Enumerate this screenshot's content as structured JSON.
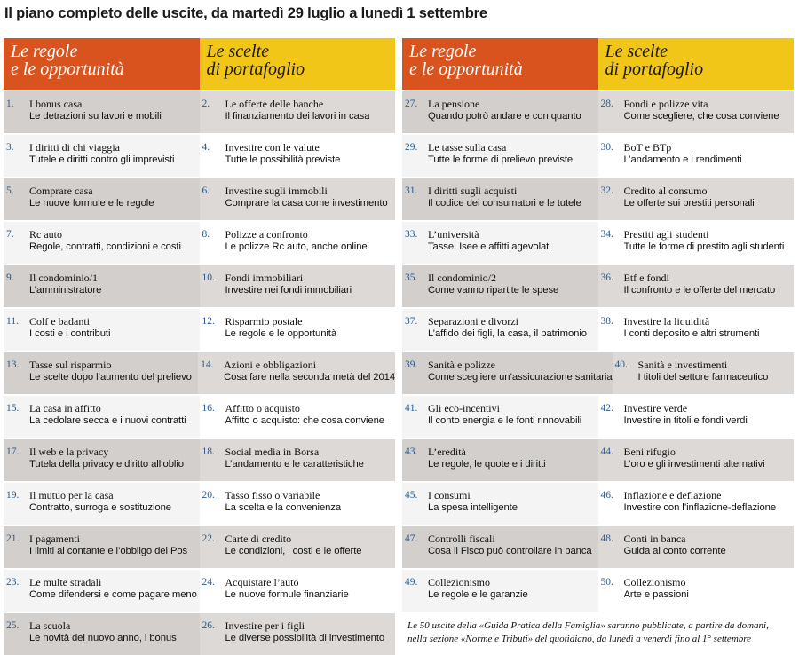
{
  "title": "Il piano completo delle uscite, da martedì 29 luglio a lunedì 1 settembre",
  "headers": {
    "left_orange": [
      "Le regole",
      "e le opportunità"
    ],
    "left_yellow": [
      "Le scelte",
      "di portafoglio"
    ],
    "right_orange": [
      "Le regole",
      "e le opportunità"
    ],
    "right_yellow": [
      "Le scelte",
      "di portafoglio"
    ]
  },
  "left_rows": [
    [
      {
        "n": "1.",
        "t": "I bonus casa",
        "s": "Le detrazioni su lavori e mobili"
      },
      {
        "n": "2.",
        "t": "Le offerte delle banche",
        "s": "Il finanziamento dei lavori in casa"
      }
    ],
    [
      {
        "n": "3.",
        "t": "I diritti di chi viaggia",
        "s": "Tutele e diritti contro gli imprevisti"
      },
      {
        "n": "4.",
        "t": "Investire con le valute",
        "s": "Tutte le possibilità previste"
      }
    ],
    [
      {
        "n": "5.",
        "t": "Comprare casa",
        "s": "Le nuove formule e le regole"
      },
      {
        "n": "6.",
        "t": "Investire sugli immobili",
        "s": "Comprare la casa come investimento"
      }
    ],
    [
      {
        "n": "7.",
        "t": "Rc auto",
        "s": "Regole, contratti, condizioni e costi"
      },
      {
        "n": "8.",
        "t": "Polizze a confronto",
        "s": "Le polizze Rc auto, anche online"
      }
    ],
    [
      {
        "n": "9.",
        "t": "Il condominio/1",
        "s": "L’amministratore"
      },
      {
        "n": "10.",
        "t": "Fondi immobiliari",
        "s": "Investire nei fondi immobiliari"
      }
    ],
    [
      {
        "n": "11.",
        "t": "Colf e badanti",
        "s": "I costi e i contributi"
      },
      {
        "n": "12.",
        "t": "Risparmio postale",
        "s": "Le regole e le opportunità"
      }
    ],
    [
      {
        "n": "13.",
        "t": "Tasse sul risparmio",
        "s": "Le scelte dopo l’aumento del prelievo"
      },
      {
        "n": "14.",
        "t": "Azioni e obbligazioni",
        "s": "Cosa fare nella seconda metà del 2014"
      }
    ],
    [
      {
        "n": "15.",
        "t": "La casa in affitto",
        "s": "La cedolare secca e i nuovi contratti"
      },
      {
        "n": "16.",
        "t": "Affitto o acquisto",
        "s": "Affitto o acquisto: che cosa conviene"
      }
    ],
    [
      {
        "n": "17.",
        "t": "Il web e la privacy",
        "s": "Tutela della privacy e diritto all’oblio"
      },
      {
        "n": "18.",
        "t": "Social media in Borsa",
        "s": "L’andamento e le caratteristiche"
      }
    ],
    [
      {
        "n": "19.",
        "t": "Il mutuo per la casa",
        "s": "Contratto, surroga e sostituzione"
      },
      {
        "n": "20.",
        "t": "Tasso fisso o variabile",
        "s": "La scelta e la convenienza"
      }
    ],
    [
      {
        "n": "21.",
        "t": "I pagamenti",
        "s": "I limiti al contante e l’obbligo del Pos"
      },
      {
        "n": "22.",
        "t": "Carte di credito",
        "s": "Le condizioni, i costi e le offerte"
      }
    ],
    [
      {
        "n": "23.",
        "t": "Le multe stradali",
        "s": "Come difendersi e come pagare meno"
      },
      {
        "n": "24.",
        "t": "Acquistare l’auto",
        "s": "Le nuove formule finanziarie"
      }
    ],
    [
      {
        "n": "25.",
        "t": "La scuola",
        "s": "Le novità del nuovo anno, i bonus"
      },
      {
        "n": "26.",
        "t": "Investire per i figli",
        "s": "Le diverse possibilità di investimento"
      }
    ]
  ],
  "right_rows": [
    [
      {
        "n": "27.",
        "t": "La pensione",
        "s": "Quando potrò andare e con quanto"
      },
      {
        "n": "28.",
        "t": "Fondi e polizze vita",
        "s": "Come scegliere, che cosa conviene"
      }
    ],
    [
      {
        "n": "29.",
        "t": "Le tasse sulla casa",
        "s": "Tutte le forme di prelievo previste"
      },
      {
        "n": "30.",
        "t": "BoT e BTp",
        "s": "L’andamento e i rendimenti"
      }
    ],
    [
      {
        "n": "31.",
        "t": "I diritti sugli acquisti",
        "s": "Il codice dei consumatori e le tutele"
      },
      {
        "n": "32.",
        "t": "Credito al consumo",
        "s": "Le offerte sui prestiti personali"
      }
    ],
    [
      {
        "n": "33.",
        "t": "L’università",
        "s": "Tasse, Isee e affitti agevolati"
      },
      {
        "n": "34.",
        "t": "Prestiti agli studenti",
        "s": "Tutte le forme di prestito agli studenti"
      }
    ],
    [
      {
        "n": "35.",
        "t": "Il condominio/2",
        "s": "Come vanno ripartite le spese"
      },
      {
        "n": "36.",
        "t": "Etf e fondi",
        "s": "Il confronto e le offerte del mercato"
      }
    ],
    [
      {
        "n": "37.",
        "t": "Separazioni e divorzi",
        "s": "L’affido dei figli, la casa, il patrimonio"
      },
      {
        "n": "38.",
        "t": "Investire la liquidità",
        "s": "I conti deposito e altri strumenti"
      }
    ],
    [
      {
        "n": "39.",
        "t": "Sanità e polizze",
        "s": "Come scegliere un’assicurazione sanitaria"
      },
      {
        "n": "40.",
        "t": "Sanità e investimenti",
        "s": "I titoli del settore farmaceutico"
      }
    ],
    [
      {
        "n": "41.",
        "t": "Gli eco-incentivi",
        "s": "Il conto energia e le fonti rinnovabili"
      },
      {
        "n": "42.",
        "t": "Investire verde",
        "s": "Investire in titoli e fondi verdi"
      }
    ],
    [
      {
        "n": "43.",
        "t": "L’eredità",
        "s": "Le regole, le quote e i diritti"
      },
      {
        "n": "44.",
        "t": "Beni rifugio",
        "s": "L’oro e gli investimenti alternativi"
      }
    ],
    [
      {
        "n": "45.",
        "t": "I consumi",
        "s": "La spesa intelligente"
      },
      {
        "n": "46.",
        "t": "Inflazione e deflazione",
        "s": "Investire con l’inflazione-deflazione"
      }
    ],
    [
      {
        "n": "47.",
        "t": "Controlli fiscali",
        "s": "Cosa il Fisco può controllare in banca"
      },
      {
        "n": "48.",
        "t": "Conti in banca",
        "s": "Guida al conto corrente"
      }
    ],
    [
      {
        "n": "49.",
        "t": "Collezionismo",
        "s": "Le regole e le garanzie"
      },
      {
        "n": "50.",
        "t": "Collezionismo",
        "s": "Arte e passioni"
      }
    ]
  ],
  "footnote": [
    "Le 50 uscite della «Guida Pratica della Famiglia» saranno pubblicate, a partire da domani,",
    "nella sezione «Norme e Tributi» del quotidiano, da lunedì a venerdì fino al 1° settembre"
  ]
}
